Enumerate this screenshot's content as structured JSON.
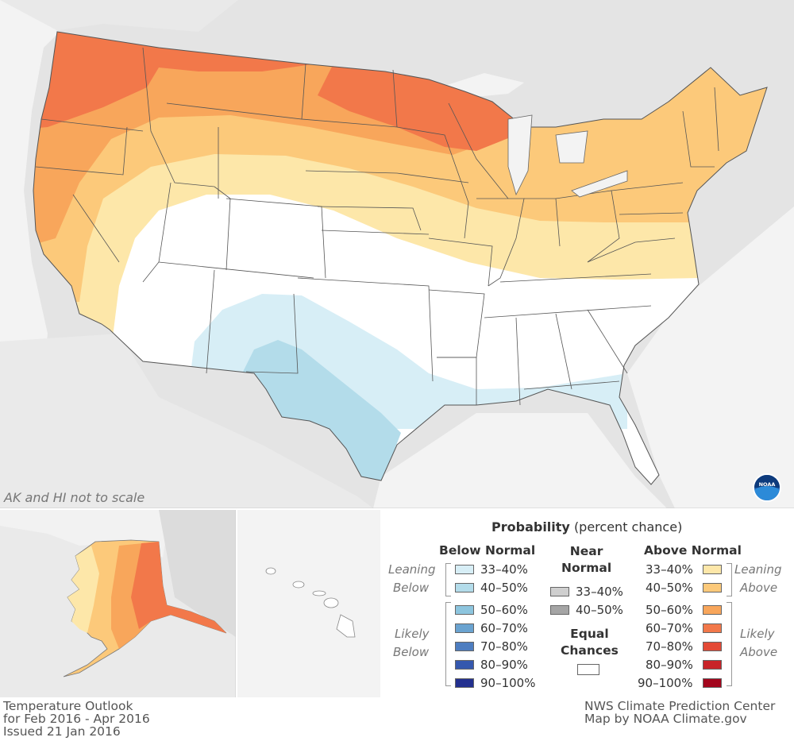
{
  "map": {
    "note": "AK and HI not to scale"
  },
  "legend": {
    "title_bold": "Probability",
    "title_rest": "(percent chance)",
    "below_head": "Below Normal",
    "near_head": "Near\nNormal",
    "above_head": "Above Normal",
    "leaning": "Leaning",
    "below_word": "Below",
    "likely": "Likely",
    "above_word": "Above",
    "equal_chances": "Equal\nChances",
    "below_bins": [
      {
        "label": "33–40%",
        "color": "#d7eef6"
      },
      {
        "label": "40–50%",
        "color": "#b3dcea"
      },
      {
        "label": "50–60%",
        "color": "#8dc5de"
      },
      {
        "label": "60–70%",
        "color": "#6aa3d0"
      },
      {
        "label": "70–80%",
        "color": "#4d7dc0"
      },
      {
        "label": "80–90%",
        "color": "#3558ae"
      },
      {
        "label": "90–100%",
        "color": "#23308f"
      }
    ],
    "near_bins": [
      {
        "label": "33–40%",
        "color": "#cfcfcf"
      },
      {
        "label": "40–50%",
        "color": "#a5a5a5"
      }
    ],
    "above_bins": [
      {
        "label": "33–40%",
        "color": "#fde7a9"
      },
      {
        "label": "40–50%",
        "color": "#fcc97a"
      },
      {
        "label": "50–60%",
        "color": "#f8a65b"
      },
      {
        "label": "60–70%",
        "color": "#f2784a"
      },
      {
        "label": "70–80%",
        "color": "#e34a36"
      },
      {
        "label": "80–90%",
        "color": "#c82429"
      },
      {
        "label": "90–100%",
        "color": "#a3061d"
      }
    ]
  },
  "footer": {
    "left_line1": "Temperature Outlook",
    "left_line2": "for Feb 2016 - Apr 2016",
    "left_line3": "Issued 21 Jan 2016",
    "right_line1": "NWS Climate Prediction Center",
    "right_line2": "Map by NOAA Climate.gov"
  },
  "logo": {
    "text": "NOAA"
  },
  "colors": {
    "land_bg": "#e4e4e4",
    "water": "#f3f3f3",
    "equal_chances": "#ffffff"
  }
}
